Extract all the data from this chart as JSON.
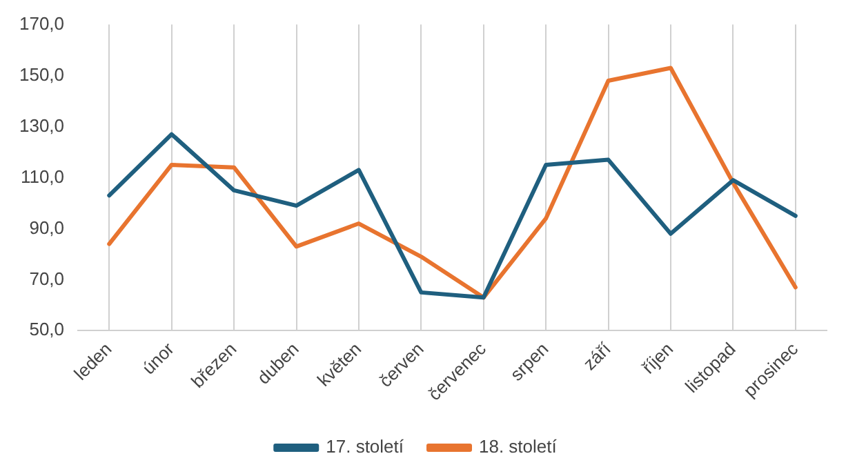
{
  "chart_data": {
    "type": "line",
    "categories": [
      "leden",
      "únor",
      "březen",
      "duben",
      "květen",
      "červen",
      "červenec",
      "srpen",
      "září",
      "říjen",
      "listopad",
      "prosinec"
    ],
    "series": [
      {
        "name": "17. století",
        "color": "#1f5f7f",
        "values": [
          103,
          127,
          105,
          99,
          113,
          65,
          63,
          115,
          117,
          88,
          109,
          95
        ]
      },
      {
        "name": "18. století",
        "color": "#e8742f",
        "values": [
          84,
          115,
          114,
          83,
          92,
          79,
          63,
          94,
          148,
          153,
          108,
          67
        ]
      }
    ],
    "ylim": [
      50,
      170
    ],
    "yticks": [
      {
        "value": 50,
        "label": "50,0"
      },
      {
        "value": 70,
        "label": "70,0"
      },
      {
        "value": 90,
        "label": "90,0"
      },
      {
        "value": 110,
        "label": "110,0"
      },
      {
        "value": 130,
        "label": "130,0"
      },
      {
        "value": 150,
        "label": "150,0"
      },
      {
        "value": 170,
        "label": "170,0"
      }
    ],
    "grid": "x",
    "legend": "bottom",
    "marker": "none",
    "line_style": "solid"
  }
}
